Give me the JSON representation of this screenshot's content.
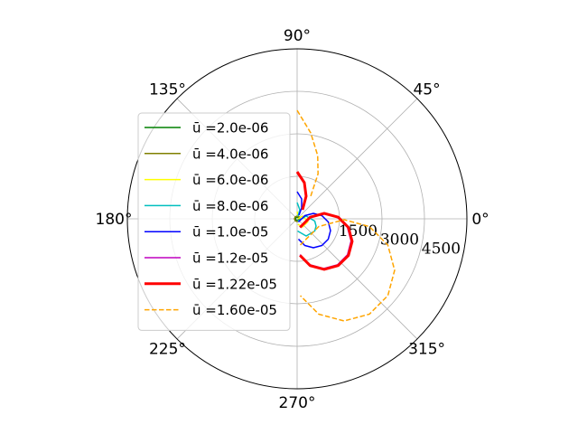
{
  "chart_data": {
    "type": "polar",
    "rlim": [
      0,
      6000
    ],
    "rticks": [
      1500,
      3000,
      4500
    ],
    "thetaticks": [
      {
        "value": 0,
        "label": "0°"
      },
      {
        "value": 45,
        "label": "45°"
      },
      {
        "value": 90,
        "label": "90°"
      },
      {
        "value": 135,
        "label": "135°"
      },
      {
        "value": 180,
        "label": "180°"
      },
      {
        "value": 225,
        "label": "225°"
      },
      {
        "value": 270,
        "label": "270°"
      },
      {
        "value": 315,
        "label": "315°"
      }
    ],
    "grid": true,
    "legend": "left",
    "series": [
      {
        "name": "ū =2.0e-06",
        "color": "#008000",
        "linestyle": "solid",
        "linewidth": 1.5,
        "theta": [
          90,
          45,
          0,
          -45,
          -90,
          -135,
          180,
          135,
          90
        ],
        "values": [
          64,
          64,
          64,
          64,
          64,
          64,
          64,
          64,
          64
        ]
      },
      {
        "name": "ū =4.0e-06",
        "color": "#808000",
        "linestyle": "solid",
        "linewidth": 1.5,
        "theta": [
          90,
          45,
          0,
          -45,
          -90,
          -135,
          180,
          135,
          90
        ],
        "values": [
          96,
          96,
          96,
          96,
          96,
          96,
          96,
          96,
          96
        ]
      },
      {
        "name": "ū =6.0e-06",
        "color": "#ffff00",
        "linestyle": "solid",
        "linewidth": 1.5,
        "theta": [
          90,
          71.6,
          null,
          0,
          26.6,
          -14,
          -56.3,
          -82.4
        ],
        "values": [
          255,
          101,
          null,
          26,
          214,
          395,
          345,
          193
        ]
      },
      {
        "name": "ū =8.0e-06",
        "color": "#00bfbf",
        "linestyle": "solid",
        "linewidth": 1.5,
        "theta": [
          90,
          73.3,
          71.6,
          null,
          -78.7,
          16.7,
          -7.3,
          -20.9,
          -34.7,
          -62.2,
          -87.9
        ],
        "values": [
          574,
          333,
          101,
          null,
          81,
          333,
          628,
          717,
          757,
          685,
          431
        ]
      },
      {
        "name": "ū =1.0e-05",
        "color": "#0000ff",
        "linestyle": "solid",
        "linewidth": 1.5,
        "theta": [
          90,
          77.2,
          67.4,
          63.4,
          null,
          -66.8,
          22.4,
          18.4,
          7.3,
          -5.8,
          -19.4,
          -33.1,
          -47,
          -60.6,
          -73.9,
          -86.2
        ],
        "values": [
          957,
          721,
          415,
          143,
          null,
          121,
          293,
          606,
          884,
          1107,
          1251,
          1314,
          1286,
          1171,
          979,
          718
        ]
      },
      {
        "name": "ū =1.2e-05",
        "color": "#bf00bf",
        "linestyle": "solid",
        "linewidth": 1.5,
        "theta": [
          90,
          78.7,
          68.2,
          59,
          null,
          -71.4,
          7.1,
          11.3,
          2.3,
          -9.5,
          -22.3,
          -35.5,
          -48.7,
          -61.8,
          -74.4,
          -85.5
        ],
        "values": [
          1620,
          1280,
          840,
          365,
          null,
          315,
          455,
          955,
          1420,
          1800,
          2060,
          2185,
          2160,
          1990,
          1685,
          1270
        ]
      },
      {
        "name": "ū =1.22e-05",
        "color": "#ff0000",
        "linestyle": "solid",
        "linewidth": 3,
        "theta": [
          90,
          78.7,
          68.2,
          59,
          null,
          -71.4,
          7.1,
          11.3,
          2.3,
          -9.5,
          -22.3,
          -35.5,
          -48.7,
          -61.8,
          -74.4,
          -85.5
        ],
        "values": [
          1659,
          1302,
          858,
          373,
          null,
          320,
          466,
          976,
          1452,
          1837,
          2102,
          2227,
          2198,
          2026,
          1716,
          1295
        ]
      },
      {
        "name": "ū =1.60e-05",
        "color": "#ffa500",
        "linestyle": "dashed",
        "linewidth": 1.5,
        "theta": [
          90,
          81,
          72,
          65,
          59,
          null,
          -83.1,
          -19.5,
          -1.1,
          -6.1,
          -16.1,
          -27.8,
          -40.2,
          -52.8,
          -65.3,
          -77.2,
          -87.6
        ],
        "values": [
          3830,
          3070,
          2350,
          1750,
          930,
          null,
          932,
          813,
          1659,
          2567,
          3336,
          3895,
          4198,
          4224,
          3968,
          3452,
          2715
        ]
      }
    ]
  }
}
